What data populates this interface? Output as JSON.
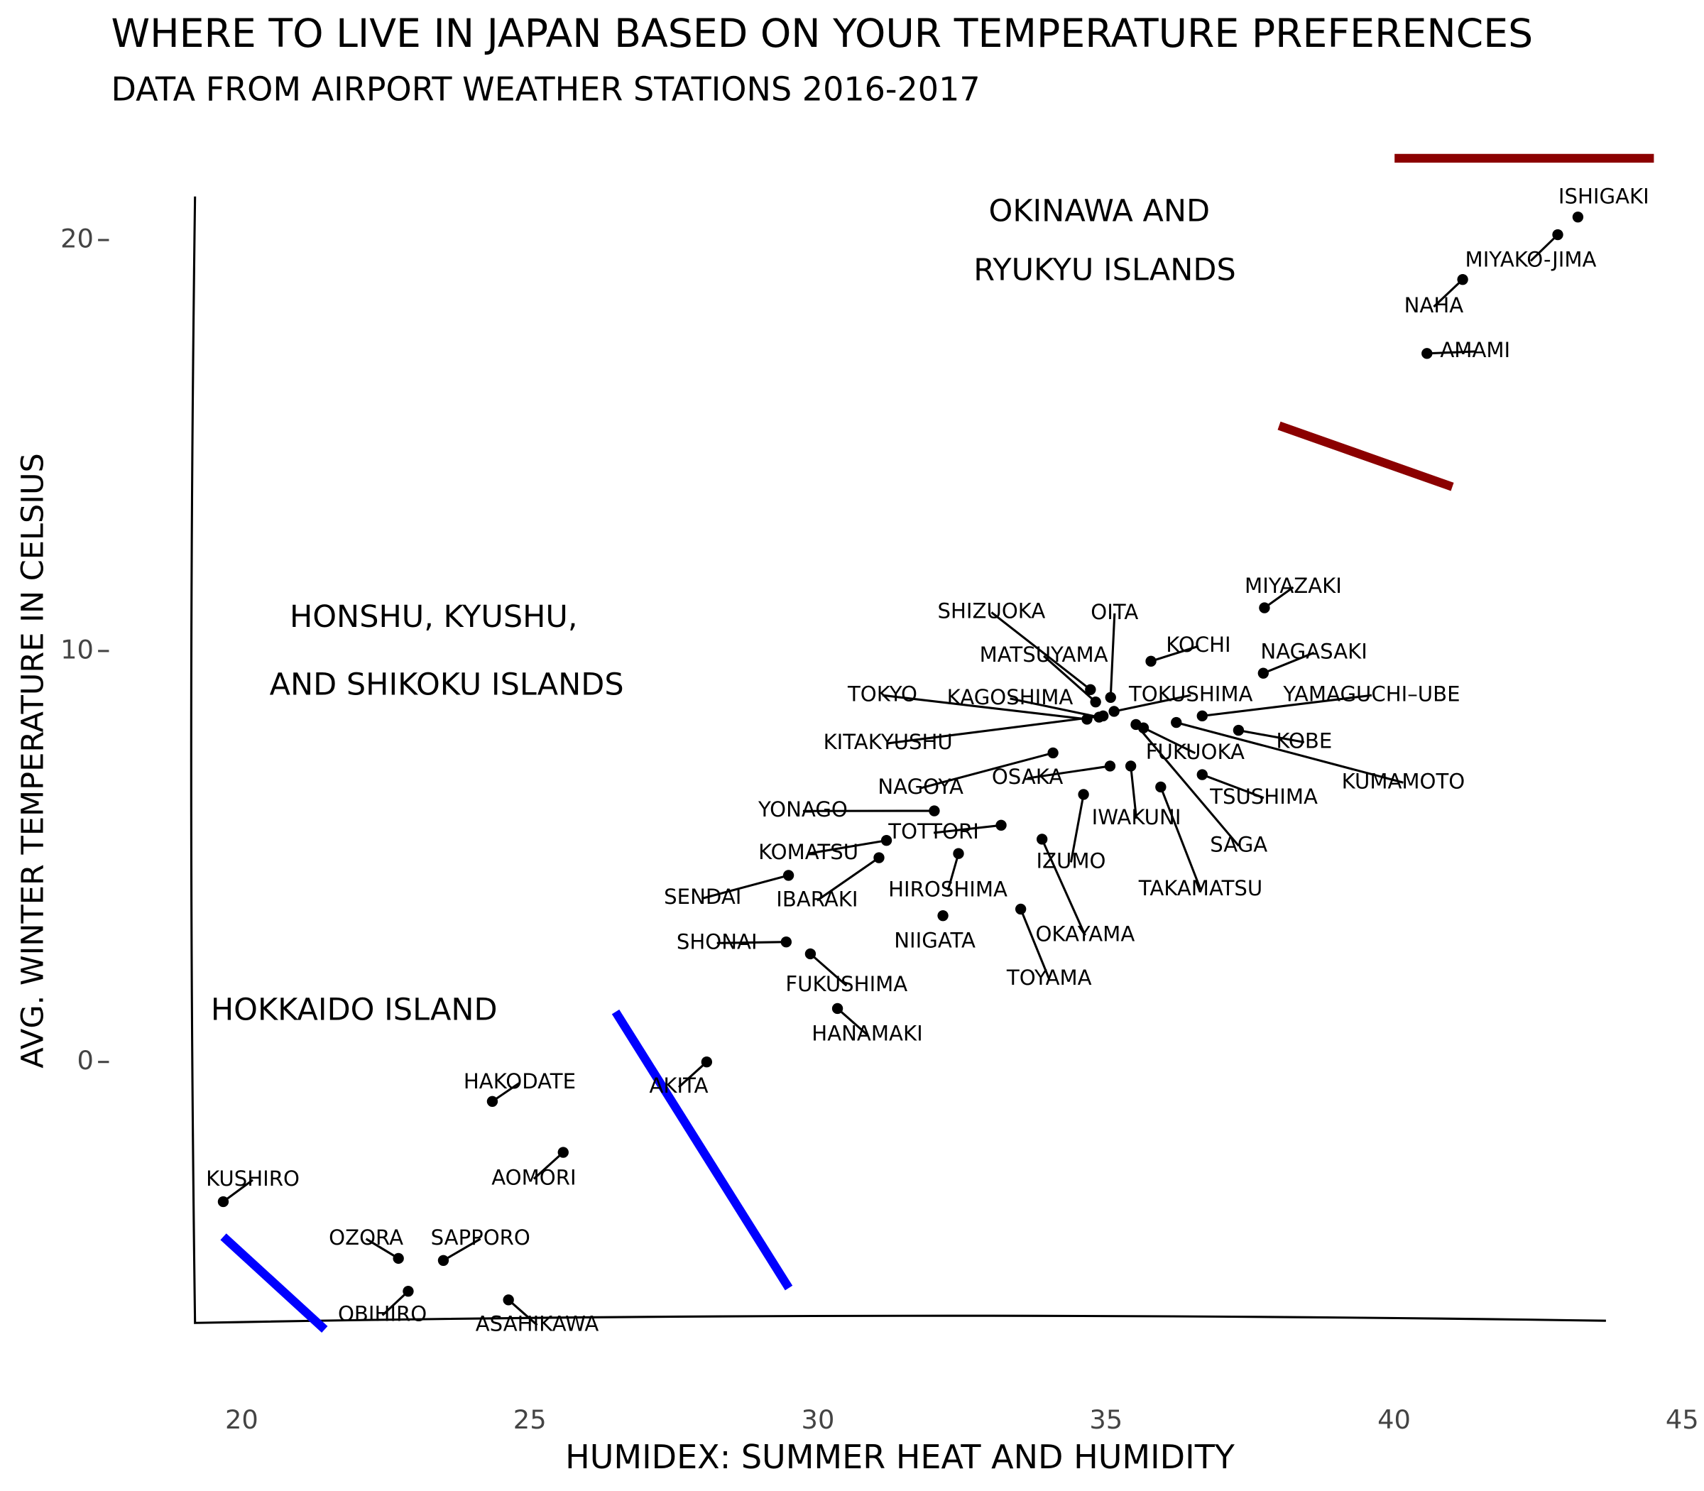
{
  "chart_data": {
    "type": "scatter",
    "title": "WHERE TO LIVE IN JAPAN BASED ON YOUR TEMPERATURE PREFERENCES",
    "subtitle": "DATA FROM AIRPORT WEATHER STATIONS 2016-2017",
    "x_label": "HUMIDEX: SUMMER HEAT AND HUMIDITY",
    "y_label": "AVG. WINTER TEMPERATURE IN CELSIUS",
    "annotations": [
      "OKINAWA AND",
      "RYUKYU ISLANDS",
      "HONSHU, KYUSHU,",
      "AND SHIKOKU ISLANDS",
      "HOKKAIDO ISLAND"
    ],
    "xlim": [
      19.19,
      45
    ],
    "ylim": [
      -6.35,
      21.06
    ],
    "xticks": [
      20,
      25,
      30,
      35,
      40,
      45
    ],
    "yticks": [
      0,
      10,
      20
    ],
    "color": "#000000",
    "labels": [
      "ISHIGAKI",
      "MIYAKO-JIMA",
      "NAHA",
      "AMAMI",
      "MIYAZAKI",
      "NAGASAKI",
      "KOCHI",
      "OITA",
      "SHIZUOKA",
      "MATSUYAMA",
      "TOKYO",
      "KAGOSHIMA",
      "KITAKYUSHU",
      "TOKUSHIMA",
      "YAMAGUCHI–UBE",
      "KOBE",
      "KUMAMOTO",
      "FUKUOKA",
      "SAGA",
      "TSUSHIMA",
      "TAKAMATSU",
      "IWAKUNI",
      "OSAKA",
      "NAGOYA",
      "IZUMO",
      "OKAYAMA",
      "TOYAMA",
      "NIIGATA",
      "HIROSHIMA",
      "TOTTORI",
      "YONAGO",
      "KOMATSU",
      "IBARAKI",
      "SENDAI",
      "SHONAI",
      "FUKUSHIMA",
      "HANAMAKI",
      "AKITA",
      "HAKODATE",
      "AOMORI",
      "KUSHIRO",
      "OZORA",
      "SAPPORO",
      "OBIHIRO",
      "ASAHIKAWA"
    ],
    "x": [
      43.19,
      42.84,
      41.19,
      40.57,
      37.75,
      37.73,
      35.78,
      35.08,
      34.73,
      34.82,
      34.67,
      34.88,
      34.95,
      35.14,
      36.67,
      37.3,
      36.22,
      35.65,
      35.52,
      36.67,
      35.95,
      35.43,
      35.07,
      34.08,
      34.61,
      33.89,
      33.52,
      32.17,
      32.44,
      33.18,
      32.02,
      31.19,
      31.06,
      29.49,
      29.45,
      29.87,
      30.34,
      28.07,
      24.35,
      25.58,
      19.68,
      22.72,
      23.5,
      22.89,
      24.63
    ],
    "values": [
      20.56,
      20.13,
      19.04,
      17.24,
      11.05,
      9.46,
      9.75,
      8.87,
      9.06,
      8.76,
      8.34,
      8.39,
      8.42,
      8.53,
      8.42,
      8.07,
      8.26,
      8.13,
      8.21,
      6.99,
      6.69,
      7.2,
      7.2,
      7.52,
      6.51,
      5.42,
      3.72,
      3.56,
      5.07,
      5.76,
      6.11,
      5.39,
      4.97,
      4.54,
      2.92,
      2.63,
      1.3,
      0,
      -0.96,
      -2.2,
      -3.4,
      -4.78,
      -4.83,
      -5.58,
      -5.79
    ]
  }
}
